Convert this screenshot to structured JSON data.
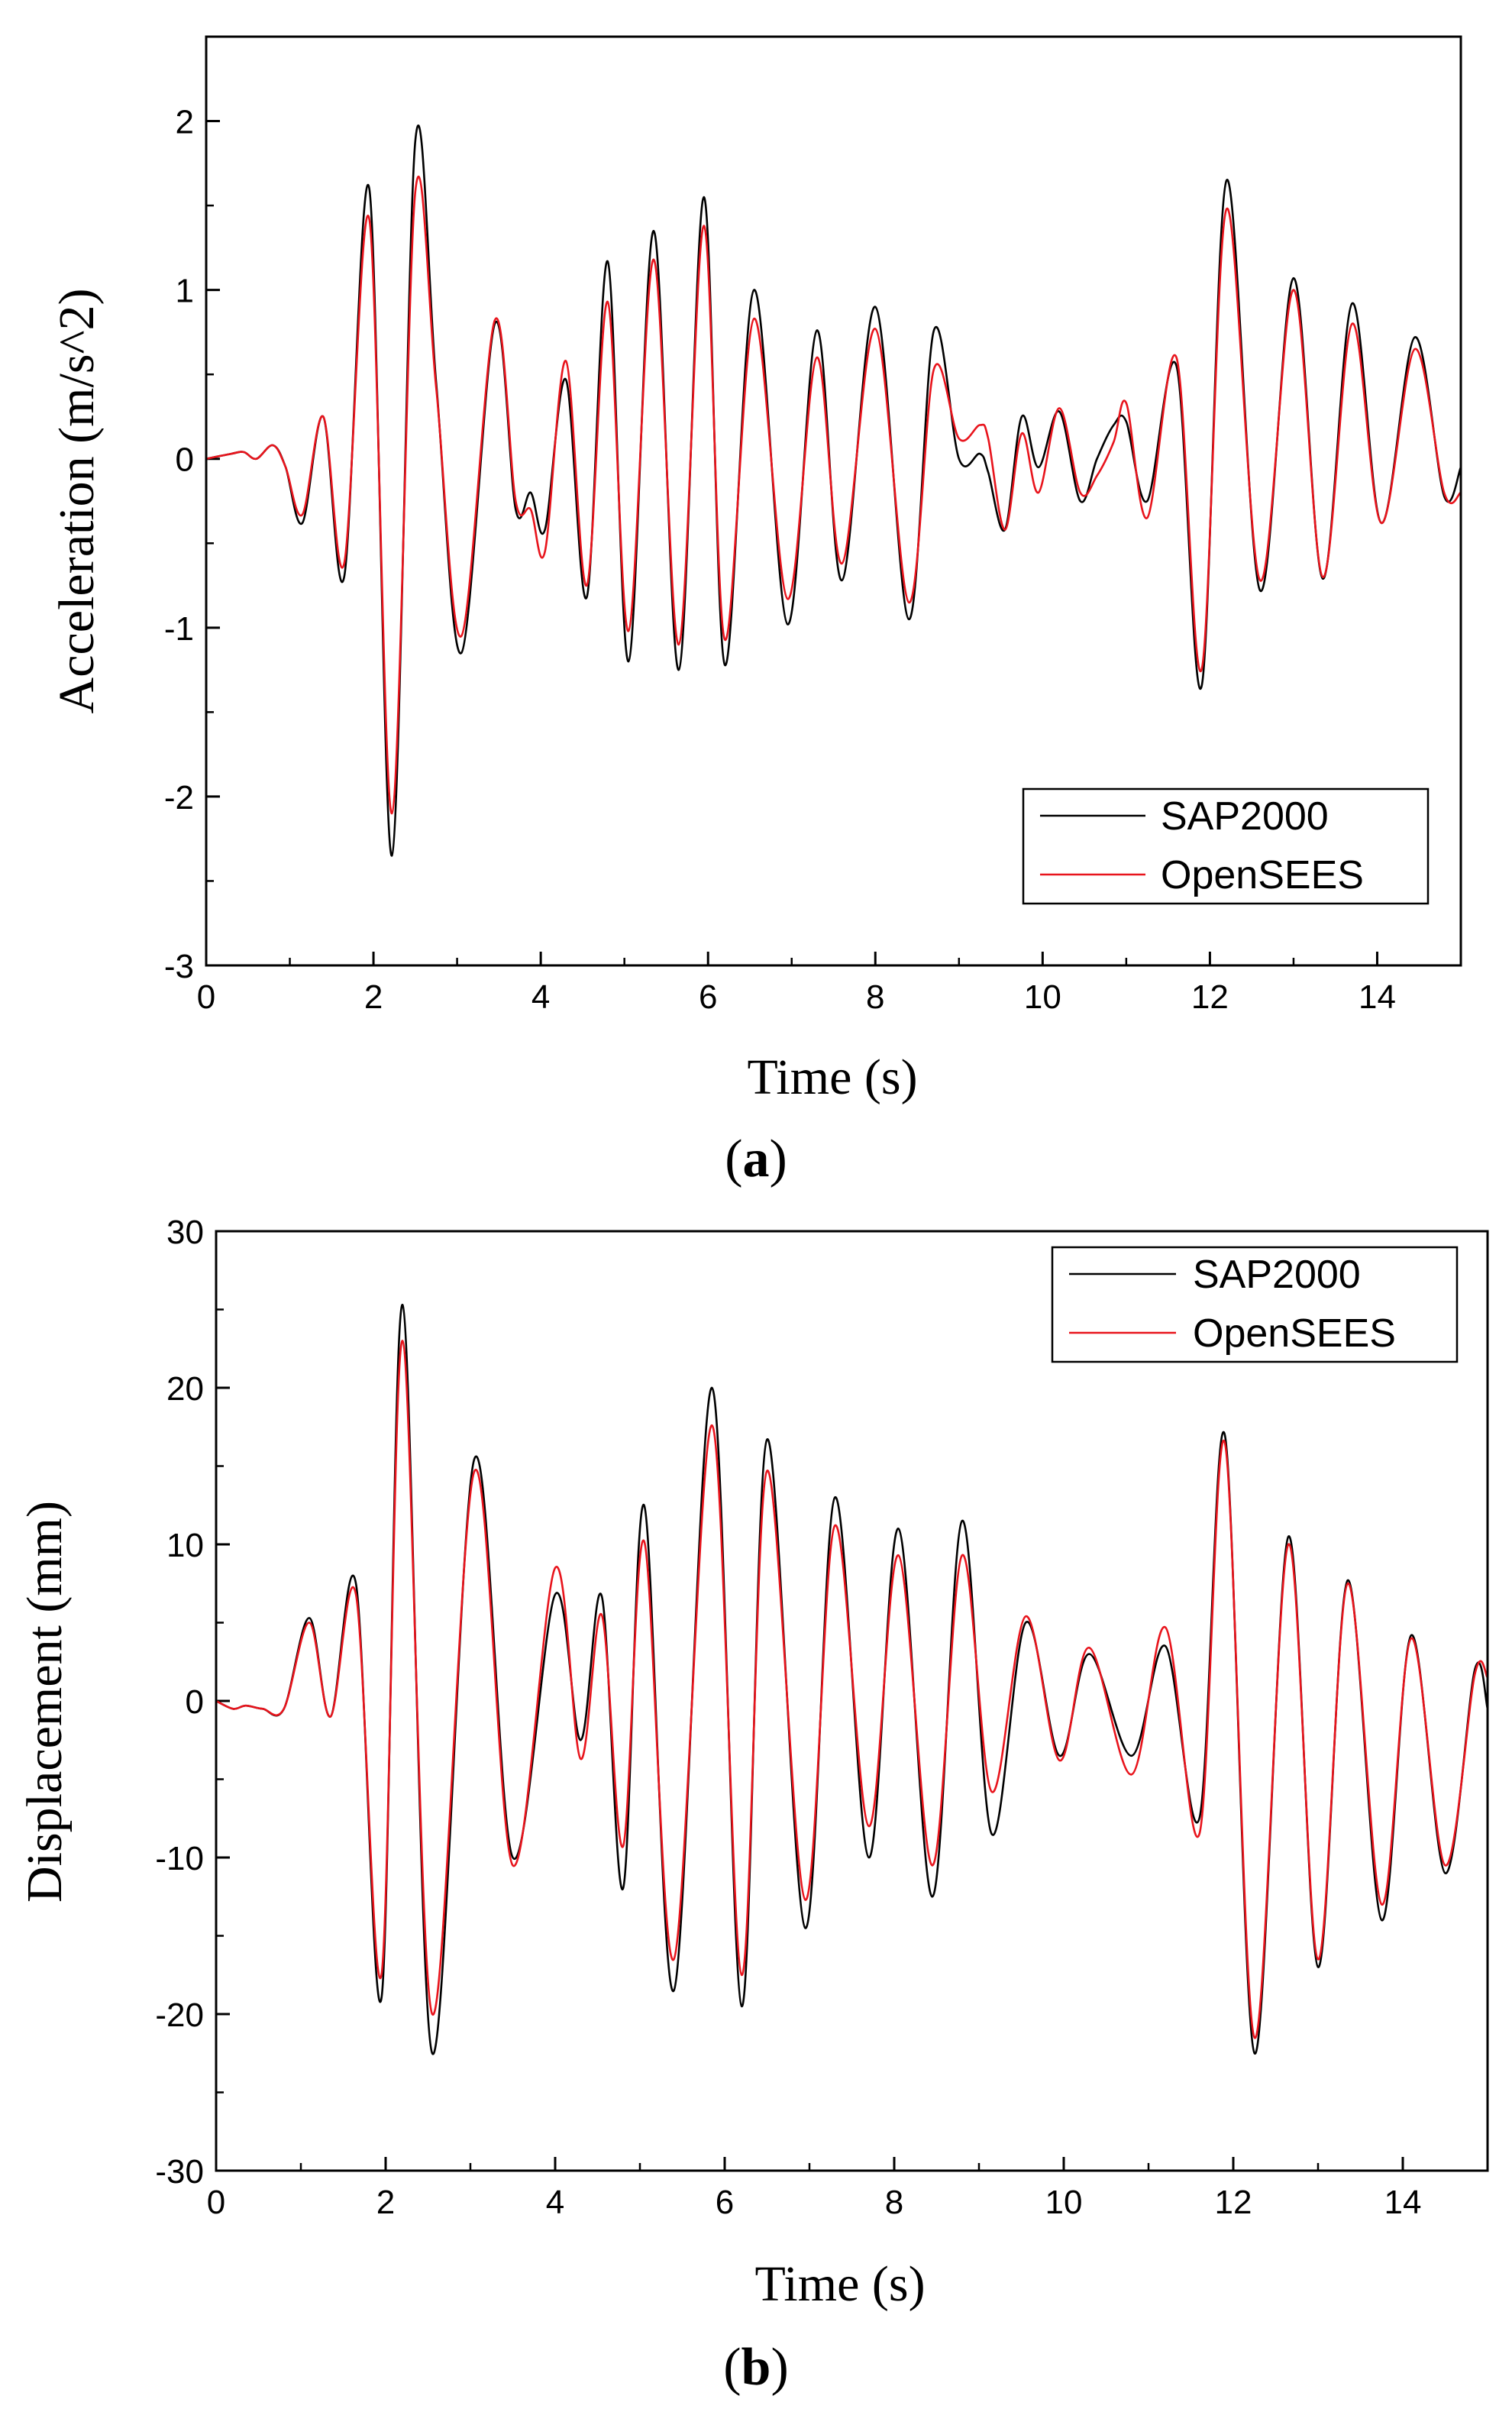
{
  "panels": {
    "a": {
      "open": "(",
      "letter": "a",
      "close": ")"
    },
    "b": {
      "open": "(",
      "letter": "b",
      "close": ")"
    }
  },
  "colors": {
    "sap": "#000000",
    "opensees": "#e8141c"
  },
  "chart_data": [
    {
      "type": "line",
      "title": "",
      "xlabel": "Time (s)",
      "ylabel": "Acceleration (m/s^2)",
      "xlim": [
        0,
        15
      ],
      "ylim": [
        -3,
        2.5
      ],
      "xticks": [
        0,
        2,
        4,
        6,
        8,
        10,
        12,
        14
      ],
      "yticks": [
        -3,
        -2,
        -1,
        0,
        1,
        2
      ],
      "legend": [
        "SAP2000",
        "OpenSEES"
      ],
      "legend_position": "bottom-right",
      "series": [
        {
          "name": "SAP2000",
          "color": "#000000",
          "t": [
            0,
            0.3,
            0.45,
            0.6,
            0.8,
            0.95,
            1.15,
            1.4,
            1.65,
            1.95,
            2.22,
            2.5,
            2.75,
            3.05,
            3.45,
            3.7,
            3.88,
            4.05,
            4.3,
            4.55,
            4.8,
            5.05,
            5.35,
            5.65,
            5.95,
            6.2,
            6.55,
            6.95,
            7.3,
            7.6,
            8.0,
            8.4,
            8.7,
            9.0,
            9.25,
            9.35,
            9.55,
            9.75,
            9.95,
            10.2,
            10.45,
            10.65,
            10.85,
            11.0,
            11.25,
            11.6,
            11.9,
            12.2,
            12.6,
            13.0,
            13.35,
            13.7,
            14.05,
            14.45,
            14.8,
            15.0
          ],
          "values": [
            0,
            0.03,
            0.04,
            0.0,
            0.08,
            -0.05,
            -0.38,
            0.25,
            -0.7,
            1.6,
            -2.35,
            1.88,
            0.45,
            -1.15,
            0.8,
            -0.3,
            -0.2,
            -0.42,
            0.47,
            -0.82,
            1.17,
            -1.2,
            1.35,
            -1.25,
            1.55,
            -1.22,
            1.0,
            -0.98,
            0.76,
            -0.72,
            0.9,
            -0.95,
            0.76,
            0.0,
            0.03,
            -0.08,
            -0.42,
            0.25,
            -0.05,
            0.28,
            -0.25,
            0.0,
            0.2,
            0.22,
            -0.25,
            0.55,
            -1.35,
            1.65,
            -0.78,
            1.07,
            -0.71,
            0.92,
            -0.38,
            0.72,
            -0.22,
            -0.05
          ]
        },
        {
          "name": "OpenSEES",
          "color": "#e8141c",
          "t": [
            0,
            0.3,
            0.45,
            0.6,
            0.8,
            0.95,
            1.15,
            1.4,
            1.65,
            1.95,
            2.22,
            2.5,
            2.75,
            3.05,
            3.45,
            3.7,
            3.88,
            4.05,
            4.3,
            4.55,
            4.8,
            5.05,
            5.35,
            5.65,
            5.95,
            6.2,
            6.55,
            6.95,
            7.3,
            7.6,
            8.0,
            8.4,
            8.7,
            9.0,
            9.25,
            9.35,
            9.55,
            9.75,
            9.95,
            10.2,
            10.45,
            10.65,
            10.85,
            11.0,
            11.25,
            11.6,
            11.9,
            12.2,
            12.6,
            13.0,
            13.35,
            13.7,
            14.05,
            14.45,
            14.8,
            15.0
          ],
          "values": [
            0,
            0.03,
            0.04,
            0.0,
            0.08,
            -0.05,
            -0.33,
            0.25,
            -0.62,
            1.42,
            -2.1,
            1.58,
            0.42,
            -1.05,
            0.82,
            -0.25,
            -0.3,
            -0.55,
            0.58,
            -0.75,
            0.93,
            -1.02,
            1.18,
            -1.1,
            1.38,
            -1.07,
            0.83,
            -0.83,
            0.6,
            -0.62,
            0.77,
            -0.85,
            0.53,
            0.12,
            0.2,
            0.12,
            -0.42,
            0.15,
            -0.2,
            0.3,
            -0.2,
            -0.1,
            0.1,
            0.33,
            -0.35,
            0.6,
            -1.25,
            1.48,
            -0.72,
            1.0,
            -0.7,
            0.8,
            -0.38,
            0.65,
            -0.2,
            -0.2
          ]
        }
      ]
    },
    {
      "type": "line",
      "title": "",
      "xlabel": "Time (s)",
      "ylabel": "Displacement (mm)",
      "xlim": [
        0,
        15
      ],
      "ylim": [
        -30,
        30
      ],
      "xticks": [
        0,
        2,
        4,
        6,
        8,
        10,
        12,
        14
      ],
      "yticks": [
        -30,
        -20,
        -10,
        0,
        10,
        20,
        30
      ],
      "legend": [
        "SAP2000",
        "OpenSEES"
      ],
      "legend_position": "top-right",
      "series": [
        {
          "name": "SAP2000",
          "color": "#000000",
          "t": [
            0,
            0.2,
            0.35,
            0.55,
            0.8,
            1.1,
            1.35,
            1.65,
            1.95,
            2.2,
            2.55,
            3.05,
            3.5,
            4.0,
            4.3,
            4.55,
            4.8,
            5.05,
            5.4,
            5.85,
            6.2,
            6.5,
            6.95,
            7.3,
            7.7,
            8.05,
            8.45,
            8.8,
            9.15,
            9.55,
            9.95,
            10.3,
            10.8,
            11.2,
            11.6,
            11.9,
            12.25,
            12.65,
            13.0,
            13.35,
            13.75,
            14.1,
            14.5,
            14.85,
            15.0
          ],
          "values": [
            0,
            -0.5,
            -0.3,
            -0.5,
            -0.5,
            5.3,
            -1.0,
            7.5,
            -19.0,
            25.3,
            -22.5,
            15.5,
            -10.0,
            6.8,
            -2.5,
            6.7,
            -12.0,
            12.5,
            -18.5,
            20.0,
            -19.5,
            16.7,
            -14.5,
            13.0,
            -10.0,
            11.0,
            -12.5,
            11.5,
            -8.5,
            5.0,
            -3.5,
            3.0,
            -3.5,
            3.5,
            -7.5,
            17.0,
            -22.5,
            10.5,
            -17.0,
            7.7,
            -14.0,
            4.2,
            -11.0,
            2.0,
            -0.5
          ]
        },
        {
          "name": "OpenSEES",
          "color": "#e8141c",
          "t": [
            0,
            0.2,
            0.35,
            0.55,
            0.8,
            1.1,
            1.35,
            1.65,
            1.95,
            2.2,
            2.55,
            3.05,
            3.5,
            4.0,
            4.3,
            4.55,
            4.8,
            5.05,
            5.4,
            5.85,
            6.2,
            6.5,
            6.95,
            7.3,
            7.7,
            8.05,
            8.45,
            8.8,
            9.15,
            9.55,
            9.95,
            10.3,
            10.8,
            11.2,
            11.6,
            11.9,
            12.25,
            12.65,
            13.0,
            13.35,
            13.75,
            14.1,
            14.5,
            14.85,
            15.0
          ],
          "values": [
            0,
            -0.5,
            -0.3,
            -0.5,
            -0.5,
            5.0,
            -1.0,
            6.8,
            -17.5,
            23.0,
            -20.0,
            14.7,
            -10.5,
            8.5,
            -3.7,
            5.5,
            -9.3,
            10.2,
            -16.5,
            17.6,
            -17.5,
            14.7,
            -12.7,
            11.2,
            -8.0,
            9.3,
            -10.5,
            9.3,
            -5.8,
            5.4,
            -3.8,
            3.4,
            -4.7,
            4.7,
            -8.5,
            16.5,
            -21.5,
            10.0,
            -16.5,
            7.5,
            -13.0,
            4.0,
            -10.5,
            1.7,
            1.5
          ]
        }
      ]
    }
  ]
}
